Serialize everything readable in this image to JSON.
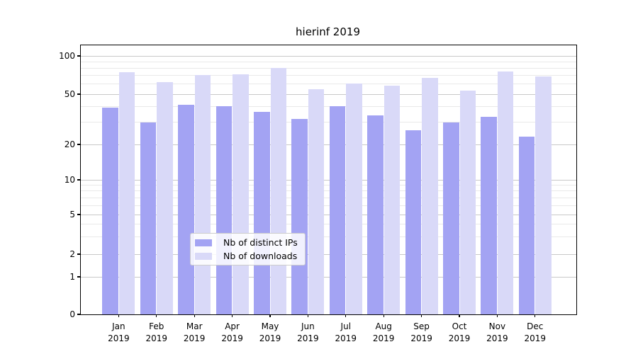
{
  "chart_data": {
    "type": "bar",
    "title": "hierinf 2019",
    "categories": [
      "Jan 2019",
      "Feb 2019",
      "Mar 2019",
      "Apr 2019",
      "May 2019",
      "Jun 2019",
      "Jul 2019",
      "Aug 2019",
      "Sep 2019",
      "Oct 2019",
      "Nov 2019",
      "Dec 2019"
    ],
    "series": [
      {
        "name": "Nb of distinct IPs",
        "color": "#a3a3f3",
        "values": [
          39,
          30,
          41,
          40,
          36,
          32,
          40,
          34,
          26,
          30,
          33,
          23
        ]
      },
      {
        "name": "Nb of downloads",
        "color": "#d9d9f8",
        "values": [
          74,
          62,
          71,
          72,
          80,
          55,
          61,
          58,
          67,
          53,
          75,
          69
        ]
      }
    ],
    "yscale": "symlog",
    "yticks": [
      0,
      1,
      2,
      5,
      10,
      20,
      50,
      100
    ],
    "minor_yticks": [
      3,
      4,
      6,
      7,
      8,
      9,
      30,
      40,
      60,
      70,
      80,
      90
    ],
    "ylim": [
      0,
      115
    ],
    "grid": true,
    "legend_position": "lower center"
  }
}
